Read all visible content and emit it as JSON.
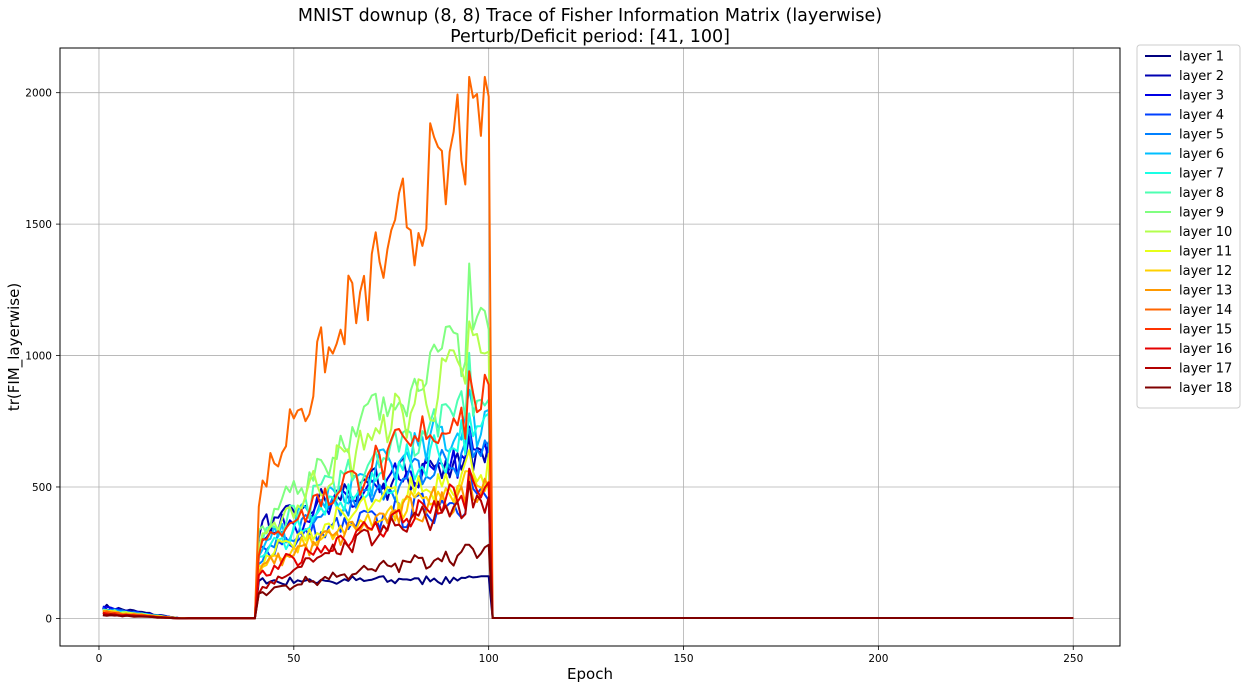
{
  "chart_data": {
    "type": "line",
    "title": "MNIST downup (8, 8) Trace of Fisher Information Matrix (layerwise)",
    "subtitle": "Perturb/Deficit period: [41, 100]",
    "xlabel": "Epoch",
    "ylabel": "tr(FIM_layerwise)",
    "xlim": [
      -10,
      262
    ],
    "ylim": [
      -105,
      2170
    ],
    "xticks": [
      0,
      50,
      100,
      150,
      200,
      250
    ],
    "yticks": [
      0,
      500,
      1000,
      1500,
      2000
    ],
    "grid": true,
    "legend_position": "outside-right",
    "perturb_period": [
      41,
      100
    ],
    "series": [
      {
        "name": "layer 1",
        "color": "#00007f",
        "init": 45,
        "peak_start": 140,
        "peak_end": 150,
        "peak_max": 160
      },
      {
        "name": "layer 2",
        "color": "#0000b2",
        "init": 40,
        "peak_start": 330,
        "peak_end": 630,
        "peak_max": 690
      },
      {
        "name": "layer 3",
        "color": "#0000e5",
        "init": 38,
        "peak_start": 300,
        "peak_end": 620,
        "peak_max": 730
      },
      {
        "name": "layer 4",
        "color": "#0040ff",
        "init": 35,
        "peak_start": 250,
        "peak_end": 470,
        "peak_max": 560
      },
      {
        "name": "layer 5",
        "color": "#0080ff",
        "init": 33,
        "peak_start": 230,
        "peak_end": 650,
        "peak_max": 720
      },
      {
        "name": "layer 6",
        "color": "#00bfff",
        "init": 32,
        "peak_start": 240,
        "peak_end": 780,
        "peak_max": 870
      },
      {
        "name": "layer 7",
        "color": "#19ffe5",
        "init": 30,
        "peak_start": 220,
        "peak_end": 720,
        "peak_max": 780
      },
      {
        "name": "layer 8",
        "color": "#4dffb2",
        "init": 30,
        "peak_start": 270,
        "peak_end": 870,
        "peak_max": 1010
      },
      {
        "name": "layer 9",
        "color": "#80ff80",
        "init": 30,
        "peak_start": 300,
        "peak_end": 1130,
        "peak_max": 1350
      },
      {
        "name": "layer 10",
        "color": "#b3ff4d",
        "init": 28,
        "peak_start": 260,
        "peak_end": 1020,
        "peak_max": 1130
      },
      {
        "name": "layer 11",
        "color": "#e6ff19",
        "init": 27,
        "peak_start": 210,
        "peak_end": 590,
        "peak_max": 640
      },
      {
        "name": "layer 12",
        "color": "#ffd100",
        "init": 25,
        "peak_start": 190,
        "peak_end": 520,
        "peak_max": 560
      },
      {
        "name": "layer 13",
        "color": "#ff9900",
        "init": 24,
        "peak_start": 180,
        "peak_end": 500,
        "peak_max": 540
      },
      {
        "name": "layer 14",
        "color": "#ff6600",
        "init": 22,
        "peak_start": 420,
        "peak_end": 1950,
        "peak_max": 2060
      },
      {
        "name": "layer 15",
        "color": "#ff3300",
        "init": 20,
        "peak_start": 250,
        "peak_end": 830,
        "peak_max": 940
      },
      {
        "name": "layer 16",
        "color": "#e50000",
        "init": 18,
        "peak_start": 150,
        "peak_end": 490,
        "peak_max": 570
      },
      {
        "name": "layer 17",
        "color": "#b20000",
        "init": 15,
        "peak_start": 100,
        "peak_end": 470,
        "peak_max": 520
      },
      {
        "name": "layer 18",
        "color": "#7f0000",
        "init": 12,
        "peak_start": 90,
        "peak_end": 260,
        "peak_max": 280
      }
    ]
  }
}
